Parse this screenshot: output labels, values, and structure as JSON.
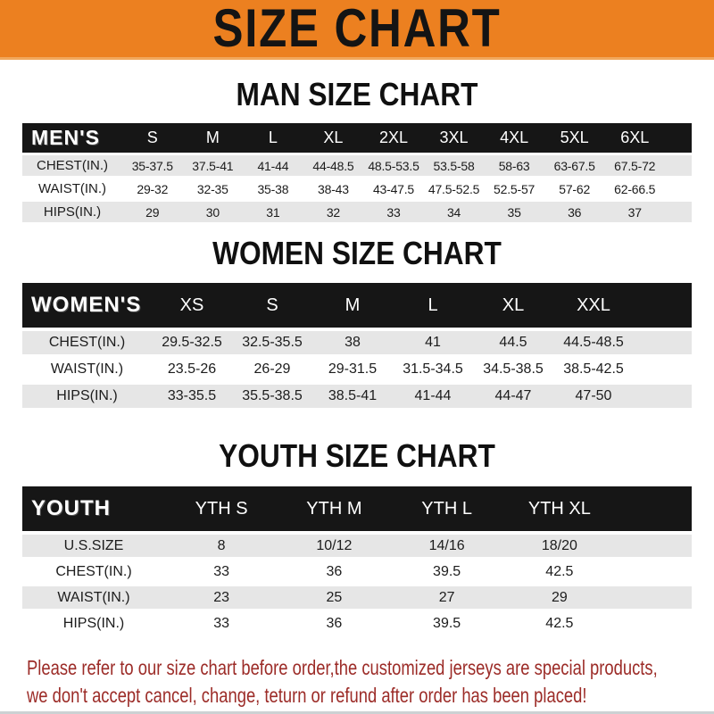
{
  "banner": {
    "title": "SIZE CHART"
  },
  "colors": {
    "banner_bg": "#EC8020",
    "header_bar_bg": "#161616",
    "row_stripe": "#E6E6E6",
    "footer_text": "#9C2C28"
  },
  "sections": [
    {
      "heading": "MAN SIZE CHART",
      "table": {
        "label": "MEN'S",
        "columns": [
          "S",
          "M",
          "L",
          "XL",
          "2XL",
          "3XL",
          "4XL",
          "5XL",
          "6XL"
        ],
        "rows": [
          {
            "label": "CHEST(IN.)",
            "values": [
              "35-37.5",
              "37.5-41",
              "41-44",
              "44-48.5",
              "48.5-53.5",
              "53.5-58",
              "58-63",
              "63-67.5",
              "67.5-72"
            ]
          },
          {
            "label": "WAIST(IN.)",
            "values": [
              "29-32",
              "32-35",
              "35-38",
              "38-43",
              "43-47.5",
              "47.5-52.5",
              "52.5-57",
              "57-62",
              "62-66.5"
            ]
          },
          {
            "label": "HIPS(IN.)",
            "values": [
              "29",
              "30",
              "31",
              "32",
              "33",
              "34",
              "35",
              "36",
              "37"
            ]
          }
        ]
      }
    },
    {
      "heading": "WOMEN SIZE CHART",
      "table": {
        "label": "WOMEN'S",
        "columns": [
          "XS",
          "S",
          "M",
          "L",
          "XL",
          "XXL"
        ],
        "rows": [
          {
            "label": "CHEST(IN.)",
            "values": [
              "29.5-32.5",
              "32.5-35.5",
              "38",
              "41",
              "44.5",
              "44.5-48.5"
            ]
          },
          {
            "label": "WAIST(IN.)",
            "values": [
              "23.5-26",
              "26-29",
              "29-31.5",
              "31.5-34.5",
              "34.5-38.5",
              "38.5-42.5"
            ]
          },
          {
            "label": "HIPS(IN.)",
            "values": [
              "33-35.5",
              "35.5-38.5",
              "38.5-41",
              "41-44",
              "44-47",
              "47-50"
            ]
          }
        ]
      }
    },
    {
      "heading": "YOUTH SIZE CHART",
      "table": {
        "label": "YOUTH",
        "columns": [
          "YTH S",
          "YTH M",
          "YTH L",
          "YTH XL"
        ],
        "rows": [
          {
            "label": "U.S.SIZE",
            "values": [
              "8",
              "10/12",
              "14/16",
              "18/20"
            ]
          },
          {
            "label": "CHEST(IN.)",
            "values": [
              "33",
              "36",
              "39.5",
              "42.5"
            ]
          },
          {
            "label": "WAIST(IN.)",
            "values": [
              "23",
              "25",
              "27",
              "29"
            ]
          },
          {
            "label": "HIPS(IN.)",
            "values": [
              "33",
              "36",
              "39.5",
              "42.5"
            ]
          }
        ]
      }
    }
  ],
  "footer": {
    "line1": "Please refer to our size chart before order,the customized jerseys are special products,",
    "line2": "we don't accept cancel, change, teturn or refund after order has been placed!"
  }
}
